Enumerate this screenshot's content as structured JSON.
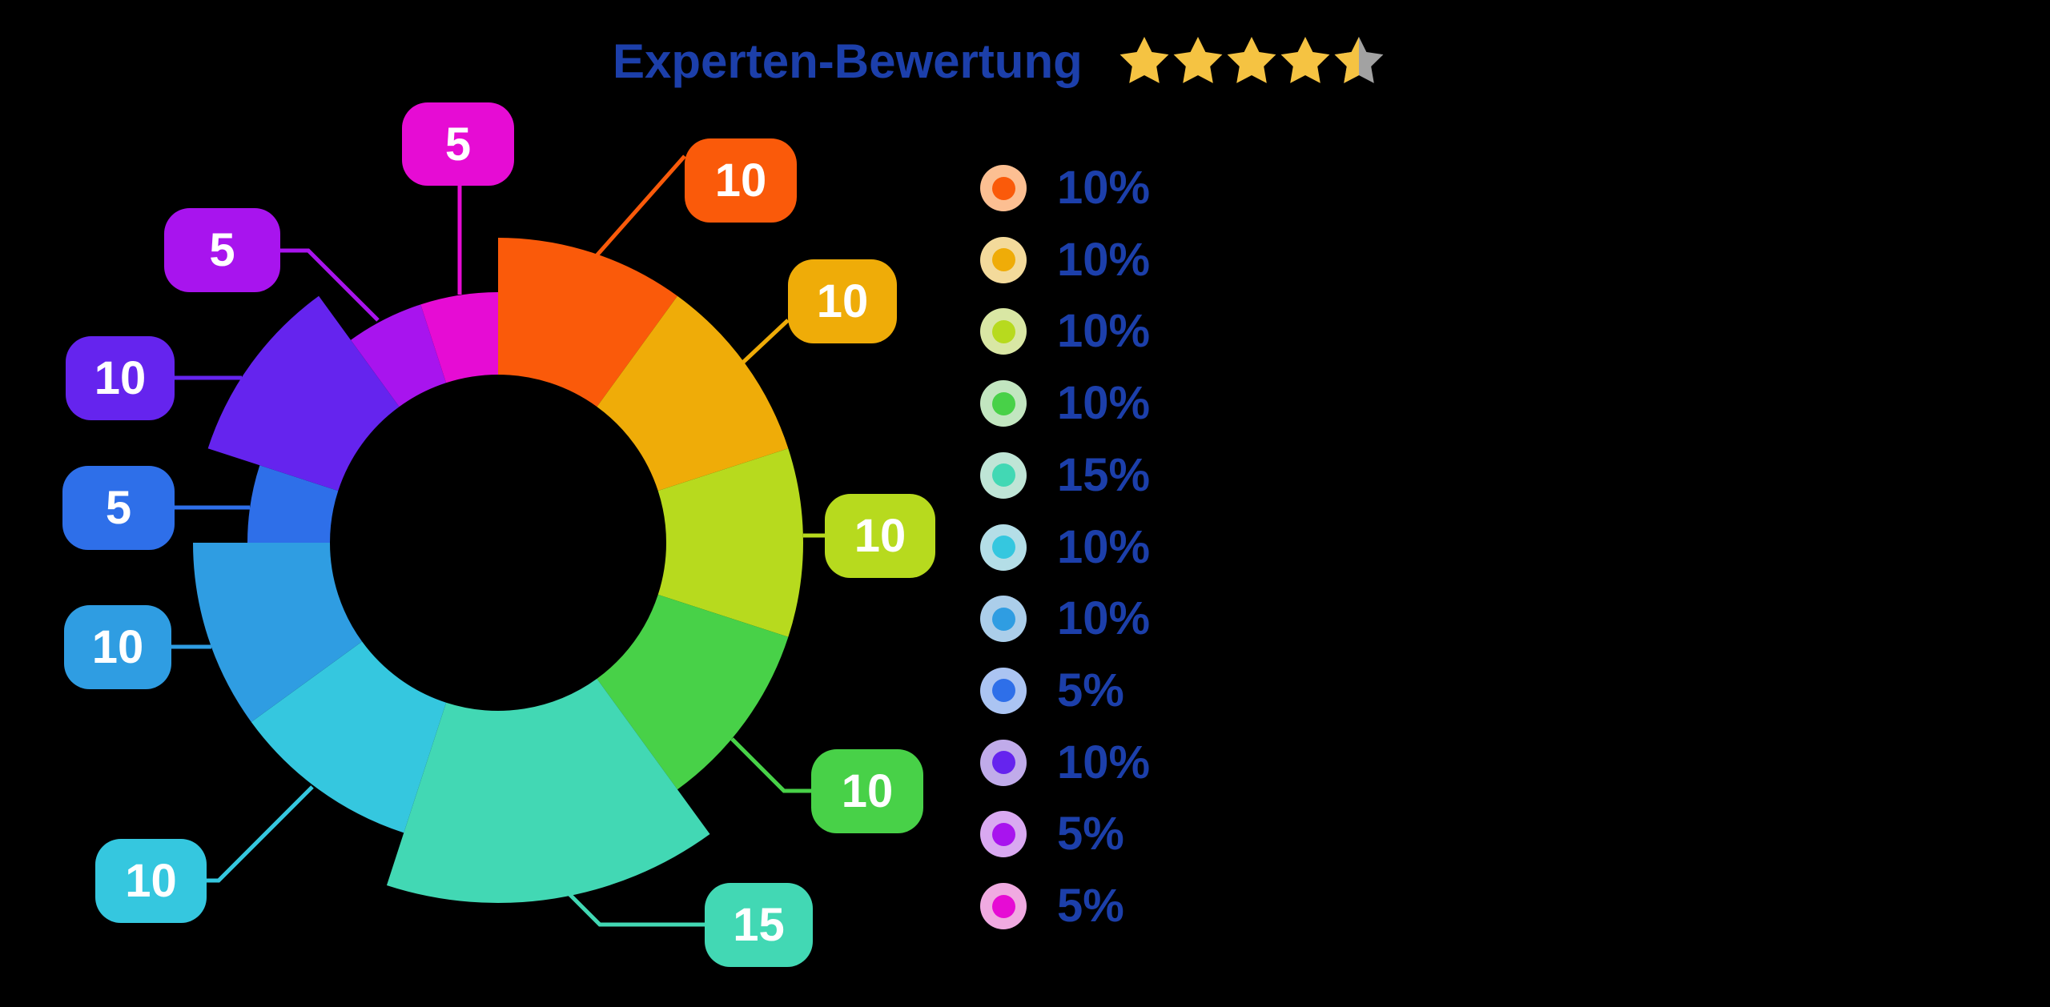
{
  "background_color": "#000000",
  "header": {
    "title": "Experten-Bewertung",
    "title_color": "#1C3FAA",
    "rating": {
      "stars_filled": 4.5,
      "stars_total": 5,
      "star_filled_color": "#F5C342",
      "star_empty_color": "#A2A2A2"
    }
  },
  "chart_data": {
    "type": "pie",
    "variant": "donut-rose-with-callouts",
    "title": "Experten-Bewertung",
    "unit": "%",
    "direction": "clockwise-from-12-oclock",
    "total": 100,
    "legend_position": "right",
    "legend_text_color": "#1C3FAA",
    "values": [
      10,
      10,
      10,
      10,
      15,
      10,
      10,
      5,
      10,
      5,
      5
    ],
    "slices": [
      {
        "id": "orange",
        "value": 10,
        "callout_label": "10",
        "legend_label": "10%",
        "color": "#FA5A0A",
        "halo": "#FCBF92"
      },
      {
        "id": "amber",
        "value": 10,
        "callout_label": "10",
        "legend_label": "10%",
        "color": "#EFAC08",
        "halo": "#F3DA9B"
      },
      {
        "id": "yellow-green",
        "value": 10,
        "callout_label": "10",
        "legend_label": "10%",
        "color": "#B7DA1E",
        "halo": "#D9E7A4"
      },
      {
        "id": "green",
        "value": 10,
        "callout_label": "10",
        "legend_label": "10%",
        "color": "#48D148",
        "halo": "#C2E6C0"
      },
      {
        "id": "teal",
        "value": 15,
        "callout_label": "15",
        "legend_label": "15%",
        "color": "#42D8B4",
        "halo": "#BFE5D6"
      },
      {
        "id": "cyan",
        "value": 10,
        "callout_label": "10",
        "legend_label": "10%",
        "color": "#35C7DF",
        "halo": "#B4DEE7"
      },
      {
        "id": "sky-blue",
        "value": 10,
        "callout_label": "10",
        "legend_label": "10%",
        "color": "#2F9DE2",
        "halo": "#ABCEEA"
      },
      {
        "id": "royal-blue",
        "value": 5,
        "callout_label": "5",
        "legend_label": "5%",
        "color": "#2E6FE9",
        "halo": "#ABC4F2"
      },
      {
        "id": "violet",
        "value": 10,
        "callout_label": "10",
        "legend_label": "10%",
        "color": "#6524EE",
        "halo": "#C0ABEA"
      },
      {
        "id": "purple",
        "value": 5,
        "callout_label": "5",
        "legend_label": "5%",
        "color": "#A814EE",
        "halo": "#D9A9F1"
      },
      {
        "id": "magenta",
        "value": 5,
        "callout_label": "5",
        "legend_label": "5%",
        "color": "#E60CD4",
        "halo": "#F0AAE1"
      }
    ]
  }
}
